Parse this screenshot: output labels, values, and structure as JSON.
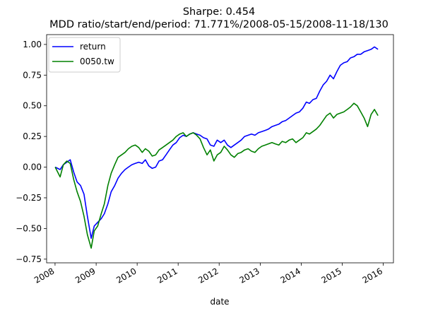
{
  "chart_data": {
    "type": "line",
    "title": "Sharpe: 0.454",
    "subtitle": "MDD ratio/start/end/period: 71.771%/2008-05-15/2008-11-18/130",
    "xlabel": "date",
    "ylabel": "",
    "x_ticks": [
      "2008",
      "2009",
      "2010",
      "2011",
      "2012",
      "2013",
      "2014",
      "2015",
      "2016"
    ],
    "y_ticks": [
      "−0.75",
      "−0.50",
      "−0.25",
      "0.00",
      "0.25",
      "0.50",
      "0.75",
      "1.00"
    ],
    "xlim": [
      "2007-10-18",
      "2016-04-01"
    ],
    "ylim": [
      -0.78,
      1.08
    ],
    "grid": false,
    "legend_position": "top-left",
    "series": [
      {
        "name": "return",
        "color": "#0000ff",
        "x": [
          "2008-01-02",
          "2008-02-15",
          "2008-03-15",
          "2008-04-15",
          "2008-05-15",
          "2008-06-15",
          "2008-07-15",
          "2008-08-15",
          "2008-09-15",
          "2008-10-15",
          "2008-11-18",
          "2008-12-15",
          "2009-01-15",
          "2009-02-15",
          "2009-03-15",
          "2009-04-15",
          "2009-05-15",
          "2009-06-15",
          "2009-07-15",
          "2009-08-15",
          "2009-09-15",
          "2009-10-15",
          "2009-11-15",
          "2009-12-15",
          "2010-01-15",
          "2010-02-15",
          "2010-03-15",
          "2010-04-15",
          "2010-05-15",
          "2010-06-15",
          "2010-07-15",
          "2010-08-15",
          "2010-09-15",
          "2010-10-15",
          "2010-11-15",
          "2010-12-15",
          "2011-01-15",
          "2011-02-15",
          "2011-03-15",
          "2011-04-15",
          "2011-05-15",
          "2011-06-15",
          "2011-07-15",
          "2011-08-15",
          "2011-09-15",
          "2011-10-15",
          "2011-11-15",
          "2011-12-15",
          "2012-01-15",
          "2012-02-15",
          "2012-03-15",
          "2012-04-15",
          "2012-05-15",
          "2012-06-15",
          "2012-07-15",
          "2012-08-15",
          "2012-09-15",
          "2012-10-15",
          "2012-11-15",
          "2012-12-15",
          "2013-01-15",
          "2013-02-15",
          "2013-03-15",
          "2013-04-15",
          "2013-05-15",
          "2013-06-15",
          "2013-07-15",
          "2013-08-15",
          "2013-09-15",
          "2013-10-15",
          "2013-11-15",
          "2013-12-15",
          "2014-01-15",
          "2014-02-15",
          "2014-03-15",
          "2014-04-15",
          "2014-05-15",
          "2014-06-15",
          "2014-07-15",
          "2014-08-15",
          "2014-09-15",
          "2014-10-15",
          "2014-11-15",
          "2014-12-15",
          "2015-01-15",
          "2015-02-15",
          "2015-03-15",
          "2015-04-15",
          "2015-05-15",
          "2015-06-15",
          "2015-07-15",
          "2015-08-15",
          "2015-09-15",
          "2015-10-15",
          "2015-11-15"
        ],
        "y": [
          0.0,
          -0.02,
          0.02,
          0.04,
          0.06,
          -0.04,
          -0.12,
          -0.15,
          -0.22,
          -0.4,
          -0.58,
          -0.48,
          -0.45,
          -0.42,
          -0.38,
          -0.3,
          -0.2,
          -0.15,
          -0.09,
          -0.05,
          -0.02,
          0.0,
          0.02,
          0.03,
          0.04,
          0.03,
          0.06,
          0.01,
          -0.01,
          0.0,
          0.05,
          0.06,
          0.1,
          0.14,
          0.18,
          0.2,
          0.24,
          0.26,
          0.25,
          0.27,
          0.28,
          0.27,
          0.26,
          0.24,
          0.23,
          0.18,
          0.17,
          0.22,
          0.2,
          0.22,
          0.18,
          0.16,
          0.18,
          0.2,
          0.22,
          0.25,
          0.26,
          0.27,
          0.26,
          0.28,
          0.29,
          0.3,
          0.31,
          0.33,
          0.34,
          0.35,
          0.37,
          0.38,
          0.4,
          0.42,
          0.44,
          0.45,
          0.48,
          0.53,
          0.52,
          0.55,
          0.56,
          0.62,
          0.67,
          0.7,
          0.75,
          0.72,
          0.78,
          0.83,
          0.85,
          0.86,
          0.89,
          0.9,
          0.92,
          0.92,
          0.94,
          0.95,
          0.96,
          0.98,
          0.96
        ]
      },
      {
        "name": "0050.tw",
        "color": "#008000",
        "x": [
          "2008-01-02",
          "2008-02-15",
          "2008-03-15",
          "2008-04-15",
          "2008-05-15",
          "2008-06-15",
          "2008-07-15",
          "2008-08-15",
          "2008-09-15",
          "2008-10-15",
          "2008-11-18",
          "2008-12-15",
          "2009-01-15",
          "2009-02-15",
          "2009-03-15",
          "2009-04-15",
          "2009-05-15",
          "2009-06-15",
          "2009-07-15",
          "2009-08-15",
          "2009-09-15",
          "2009-10-15",
          "2009-11-15",
          "2009-12-15",
          "2010-01-15",
          "2010-02-15",
          "2010-03-15",
          "2010-04-15",
          "2010-05-15",
          "2010-06-15",
          "2010-07-15",
          "2010-08-15",
          "2010-09-15",
          "2010-10-15",
          "2010-11-15",
          "2010-12-15",
          "2011-01-15",
          "2011-02-15",
          "2011-03-15",
          "2011-04-15",
          "2011-05-15",
          "2011-06-15",
          "2011-07-15",
          "2011-08-15",
          "2011-09-15",
          "2011-10-15",
          "2011-11-15",
          "2011-12-15",
          "2012-01-15",
          "2012-02-15",
          "2012-03-15",
          "2012-04-15",
          "2012-05-15",
          "2012-06-15",
          "2012-07-15",
          "2012-08-15",
          "2012-09-15",
          "2012-10-15",
          "2012-11-15",
          "2012-12-15",
          "2013-01-15",
          "2013-02-15",
          "2013-03-15",
          "2013-04-15",
          "2013-05-15",
          "2013-06-15",
          "2013-07-15",
          "2013-08-15",
          "2013-09-15",
          "2013-10-15",
          "2013-11-15",
          "2013-12-15",
          "2014-01-15",
          "2014-02-15",
          "2014-03-15",
          "2014-04-15",
          "2014-05-15",
          "2014-06-15",
          "2014-07-15",
          "2014-08-15",
          "2014-09-15",
          "2014-10-15",
          "2014-11-15",
          "2014-12-15",
          "2015-01-15",
          "2015-02-15",
          "2015-03-15",
          "2015-04-15",
          "2015-05-15",
          "2015-06-15",
          "2015-07-15",
          "2015-08-15",
          "2015-09-15",
          "2015-10-15",
          "2015-11-15"
        ],
        "y": [
          0.0,
          -0.08,
          0.02,
          0.05,
          0.03,
          -0.1,
          -0.2,
          -0.28,
          -0.4,
          -0.55,
          -0.66,
          -0.52,
          -0.48,
          -0.38,
          -0.3,
          -0.15,
          -0.05,
          0.02,
          0.08,
          0.1,
          0.12,
          0.15,
          0.17,
          0.18,
          0.16,
          0.12,
          0.15,
          0.13,
          0.09,
          0.1,
          0.14,
          0.16,
          0.18,
          0.2,
          0.22,
          0.25,
          0.27,
          0.28,
          0.25,
          0.27,
          0.28,
          0.26,
          0.23,
          0.16,
          0.1,
          0.14,
          0.05,
          0.1,
          0.12,
          0.17,
          0.14,
          0.1,
          0.08,
          0.11,
          0.12,
          0.14,
          0.15,
          0.13,
          0.12,
          0.15,
          0.17,
          0.18,
          0.19,
          0.2,
          0.19,
          0.18,
          0.21,
          0.2,
          0.22,
          0.23,
          0.2,
          0.22,
          0.24,
          0.28,
          0.27,
          0.29,
          0.31,
          0.34,
          0.38,
          0.42,
          0.44,
          0.4,
          0.43,
          0.44,
          0.45,
          0.47,
          0.49,
          0.52,
          0.5,
          0.45,
          0.4,
          0.33,
          0.43,
          0.47,
          0.42
        ]
      }
    ]
  }
}
